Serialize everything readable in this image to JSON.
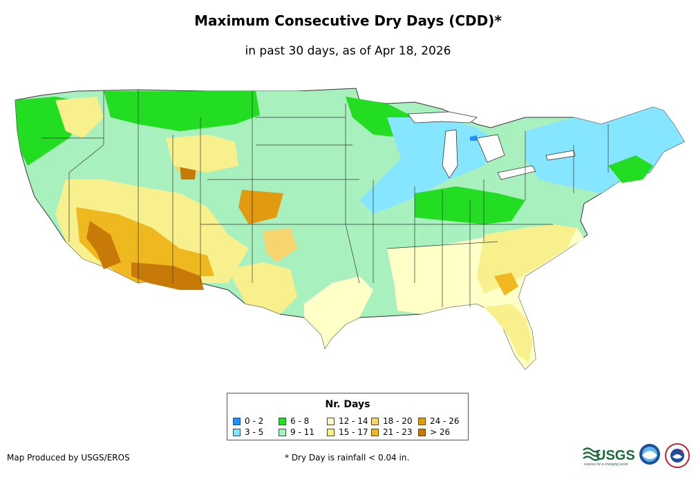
{
  "title": "Maximum Consecutive Dry Days (CDD)*",
  "subtitle": "in past 30 days, as of Apr 18, 2026",
  "legend": {
    "title": "Nr. Days",
    "items": [
      {
        "label": "0 - 2",
        "color": "#1e90ff"
      },
      {
        "label": "3 - 5",
        "color": "#87e6ff"
      },
      {
        "label": "6 - 8",
        "color": "#22dd22"
      },
      {
        "label": "9 - 11",
        "color": "#a8f0be"
      },
      {
        "label": "12 - 14",
        "color": "#ffffc8"
      },
      {
        "label": "15 - 17",
        "color": "#f8f08c"
      },
      {
        "label": "18 - 20",
        "color": "#f6d56e"
      },
      {
        "label": "21 - 23",
        "color": "#efb81e"
      },
      {
        "label": "24 - 26",
        "color": "#e29a10"
      },
      {
        "label": "> 26",
        "color": "#c87a08"
      }
    ]
  },
  "footer": {
    "credit": "Map Produced by USGS/EROS",
    "note": "* Dry Day is rainfall < 0.04 in."
  },
  "logos": {
    "usgs": "USGS",
    "usgs_tagline": "science for a changing world",
    "noaa_icon": "noaa-logo-icon",
    "nws_icon": "nws-logo-icon"
  }
}
